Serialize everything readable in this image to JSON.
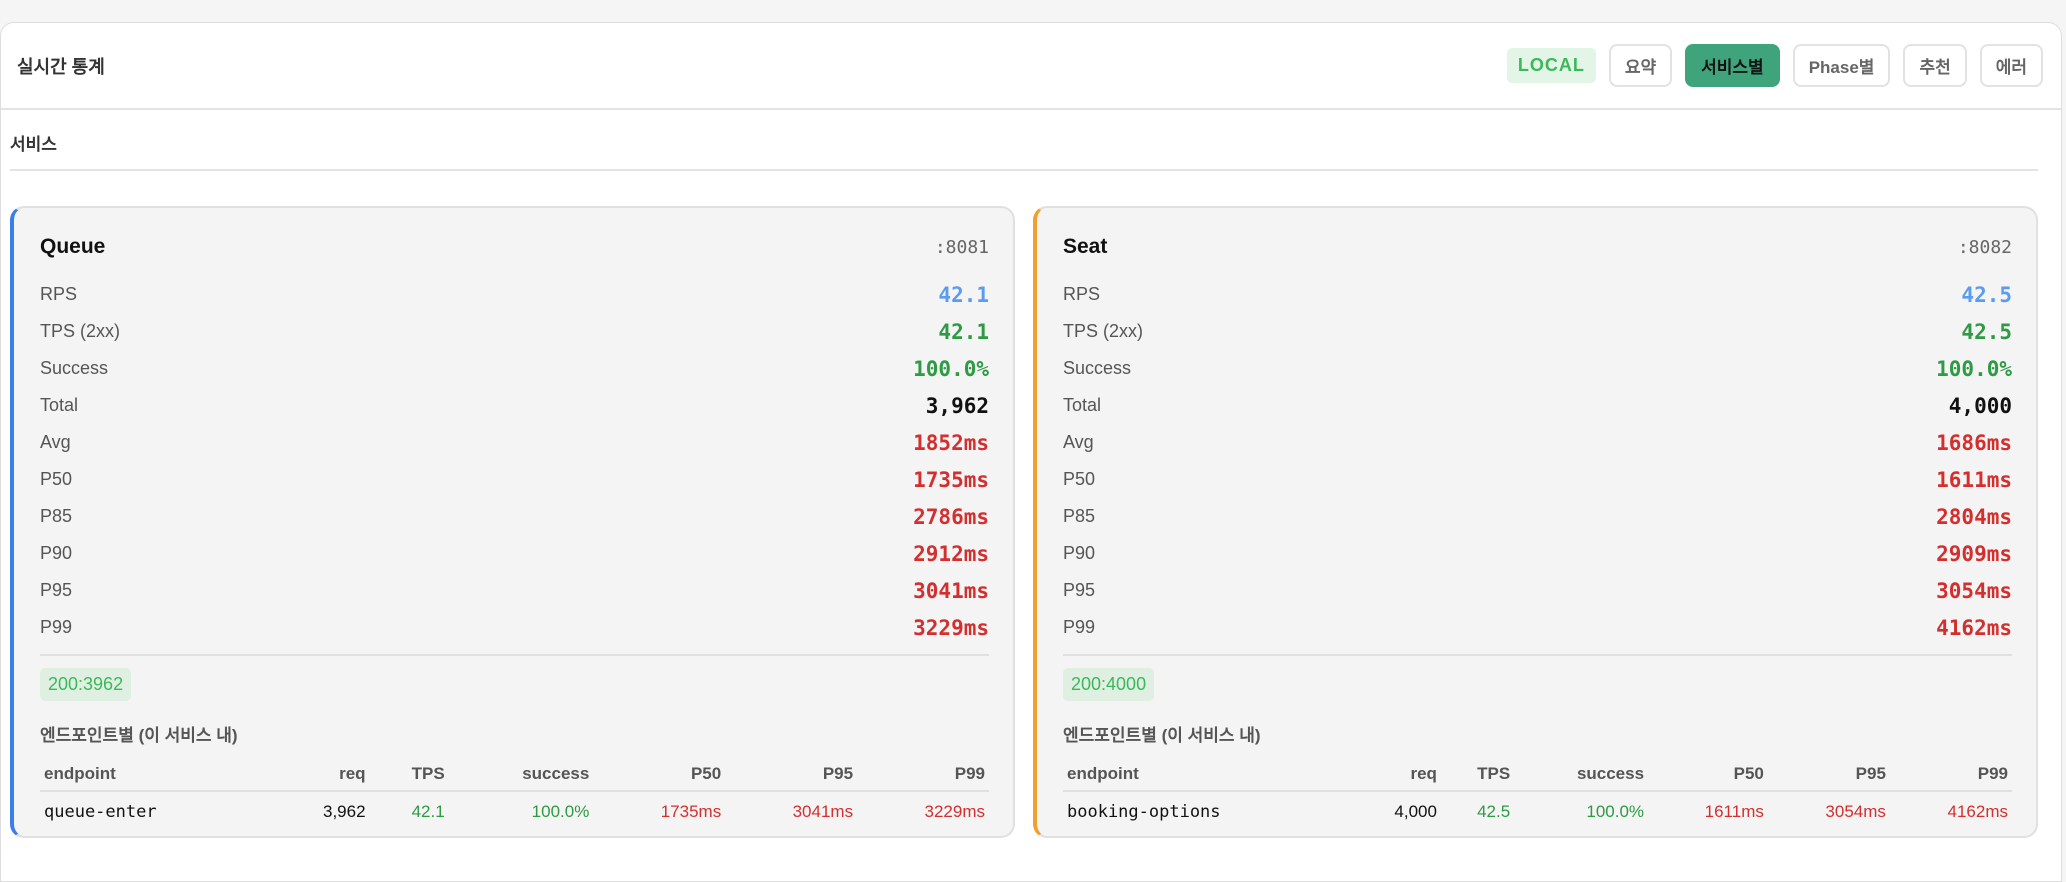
{
  "header": {
    "title": "실시간 통계",
    "env_badge": "LOCAL",
    "tabs": [
      "요약",
      "서비스별",
      "Phase별",
      "추천",
      "에러"
    ],
    "active_tab": "서비스별"
  },
  "section_title": "서비스",
  "metric_labels": [
    "RPS",
    "TPS (2xx)",
    "Success",
    "Total",
    "Avg",
    "P50",
    "P85",
    "P90",
    "P95",
    "P99"
  ],
  "table_headers": [
    "endpoint",
    "req",
    "TPS",
    "success",
    "P50",
    "P95",
    "P99"
  ],
  "endpoint_title": "엔드포인트별 (이 서비스 내)",
  "services": [
    {
      "name": "Queue",
      "port": ":8081",
      "metrics": [
        "42.1",
        "42.1",
        "100.0%",
        "3,962",
        "1852ms",
        "1735ms",
        "2786ms",
        "2912ms",
        "3041ms",
        "3229ms"
      ],
      "status_code": "200:3962",
      "rows": [
        [
          "queue-enter",
          "3,962",
          "42.1",
          "100.0%",
          "1735ms",
          "3041ms",
          "3229ms"
        ]
      ]
    },
    {
      "name": "Seat",
      "port": ":8082",
      "metrics": [
        "42.5",
        "42.5",
        "100.0%",
        "4,000",
        "1686ms",
        "1611ms",
        "2804ms",
        "2909ms",
        "3054ms",
        "4162ms"
      ],
      "status_code": "200:4000",
      "rows": [
        [
          "booking-options",
          "4,000",
          "42.5",
          "100.0%",
          "1611ms",
          "3054ms",
          "4162ms"
        ]
      ]
    }
  ]
}
